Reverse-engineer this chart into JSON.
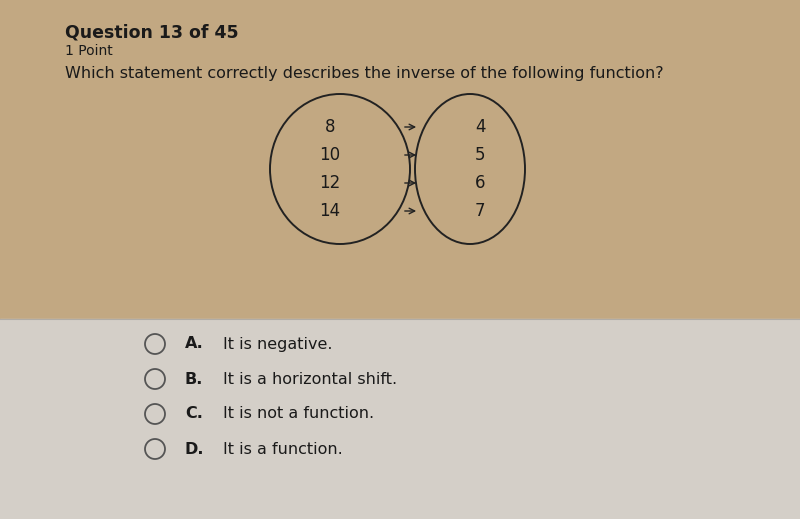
{
  "bg_top_color": "#c2a882",
  "bg_bottom_color": "#d4cfc8",
  "title_text": "Question 13 of 45",
  "subtitle_text": "1 Point",
  "question_text": "Which statement correctly describes the inverse of the following function?",
  "left_values": [
    "8",
    "10",
    "12",
    "14"
  ],
  "right_values": [
    "4",
    "5",
    "6",
    "7"
  ],
  "arrows": [
    [
      0,
      0
    ],
    [
      1,
      1
    ],
    [
      2,
      2
    ],
    [
      3,
      3
    ]
  ],
  "options": [
    {
      "label": "A.",
      "text": "It is negative."
    },
    {
      "label": "B.",
      "text": "It is a horizontal shift."
    },
    {
      "label": "C.",
      "text": "It is not a function."
    },
    {
      "label": "D.",
      "text": "It is a function."
    }
  ],
  "option_font_size": 11.5,
  "question_font_size": 11.5,
  "title_font_size": 12.5,
  "subtitle_font_size": 10,
  "diagram_font_size": 12,
  "text_color": "#1a1a1a",
  "separator_color": "#b0aca6",
  "circle_color": "#555555"
}
